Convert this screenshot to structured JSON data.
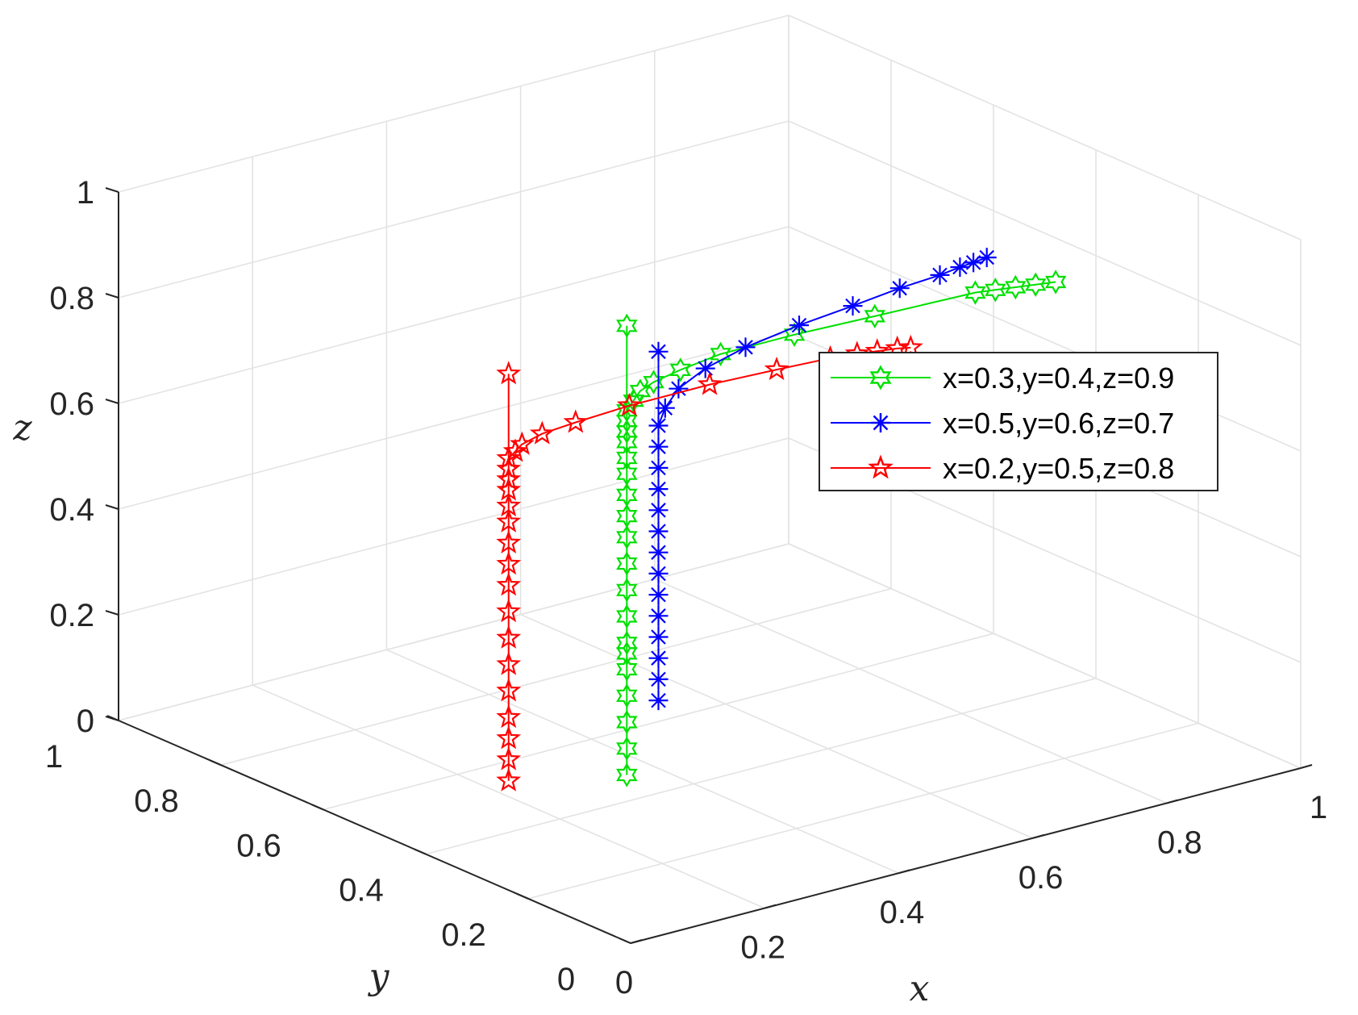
{
  "chart_data": {
    "type": "line3d",
    "title": "",
    "xlabel": "x",
    "ylabel": "y",
    "zlabel": "z",
    "xlim": [
      0,
      1
    ],
    "ylim": [
      0,
      1
    ],
    "zlim": [
      0,
      1
    ],
    "x_ticks": [
      "0",
      "0.2",
      "0.4",
      "0.6",
      "0.8",
      "1"
    ],
    "y_ticks": [
      "0",
      "0.2",
      "0.4",
      "0.6",
      "0.8",
      "1"
    ],
    "z_ticks": [
      "0",
      "0.2",
      "0.4",
      "0.6",
      "0.8",
      "1"
    ],
    "grid": true,
    "legend_position": "right",
    "series": [
      {
        "name": "x=0.3,y=0.4,z=0.9",
        "color": "#00e000",
        "marker": "hexagram",
        "x": [
          0.3,
          0.3,
          0.3,
          0.3,
          0.3,
          0.3,
          0.3,
          0.3,
          0.3,
          0.3,
          0.3,
          0.3,
          0.3,
          0.3,
          0.3,
          0.3,
          0.3,
          0.3,
          0.3,
          0.3,
          0.3,
          0.31,
          0.32,
          0.34,
          0.38,
          0.44,
          0.55,
          0.67,
          0.82,
          0.85,
          0.88,
          0.91,
          0.94
        ],
        "y": [
          0.4,
          0.4,
          0.4,
          0.4,
          0.4,
          0.4,
          0.4,
          0.4,
          0.4,
          0.4,
          0.4,
          0.4,
          0.4,
          0.4,
          0.4,
          0.4,
          0.4,
          0.4,
          0.4,
          0.4,
          0.4,
          0.4,
          0.4,
          0.4,
          0.4,
          0.4,
          0.4,
          0.4,
          0.4,
          0.4,
          0.4,
          0.4,
          0.4
        ],
        "z": [
          0.9,
          0.7,
          0.28,
          0.05,
          0.1,
          0.15,
          0.2,
          0.25,
          0.3,
          0.35,
          0.4,
          0.45,
          0.5,
          0.54,
          0.58,
          0.62,
          0.65,
          0.68,
          0.7,
          0.72,
          0.74,
          0.755,
          0.77,
          0.78,
          0.79,
          0.8,
          0.8,
          0.795,
          0.79,
          0.785,
          0.78,
          0.775,
          0.77
        ]
      },
      {
        "name": "x=0.5,y=0.6,z=0.7",
        "color": "#0000ff",
        "marker": "asterisk",
        "x": [
          0.5,
          0.5,
          0.5,
          0.5,
          0.5,
          0.5,
          0.5,
          0.5,
          0.5,
          0.5,
          0.5,
          0.5,
          0.5,
          0.5,
          0.5,
          0.51,
          0.53,
          0.57,
          0.63,
          0.71,
          0.79,
          0.86,
          0.92,
          0.95,
          0.97,
          0.99
        ],
        "y": [
          0.6,
          0.6,
          0.6,
          0.6,
          0.6,
          0.6,
          0.6,
          0.6,
          0.6,
          0.6,
          0.6,
          0.6,
          0.6,
          0.6,
          0.6,
          0.6,
          0.6,
          0.6,
          0.6,
          0.6,
          0.6,
          0.6,
          0.6,
          0.6,
          0.6,
          0.6
        ],
        "z": [
          0.7,
          0.04,
          0.08,
          0.12,
          0.16,
          0.2,
          0.24,
          0.28,
          0.32,
          0.36,
          0.4,
          0.44,
          0.48,
          0.52,
          0.56,
          0.59,
          0.62,
          0.645,
          0.665,
          0.68,
          0.69,
          0.7,
          0.705,
          0.71,
          0.712,
          0.715
        ]
      },
      {
        "name": "x=0.2,y=0.5,z=0.8",
        "color": "#ff0000",
        "marker": "pentagram",
        "x": [
          0.2,
          0.2,
          0.2,
          0.2,
          0.2,
          0.2,
          0.2,
          0.2,
          0.2,
          0.2,
          0.2,
          0.2,
          0.2,
          0.2,
          0.2,
          0.2,
          0.2,
          0.2,
          0.21,
          0.22,
          0.25,
          0.3,
          0.38,
          0.5,
          0.6,
          0.68,
          0.72,
          0.75,
          0.78,
          0.8
        ],
        "y": [
          0.5,
          0.5,
          0.5,
          0.5,
          0.5,
          0.5,
          0.5,
          0.5,
          0.5,
          0.5,
          0.5,
          0.5,
          0.5,
          0.5,
          0.5,
          0.5,
          0.5,
          0.5,
          0.5,
          0.5,
          0.5,
          0.5,
          0.5,
          0.5,
          0.5,
          0.5,
          0.5,
          0.5,
          0.5,
          0.5
        ],
        "z": [
          0.8,
          0.03,
          0.07,
          0.11,
          0.15,
          0.2,
          0.25,
          0.3,
          0.35,
          0.4,
          0.44,
          0.48,
          0.52,
          0.55,
          0.58,
          0.6,
          0.62,
          0.64,
          0.65,
          0.66,
          0.67,
          0.675,
          0.68,
          0.68,
          0.675,
          0.67,
          0.665,
          0.66,
          0.655,
          0.65
        ]
      }
    ]
  }
}
